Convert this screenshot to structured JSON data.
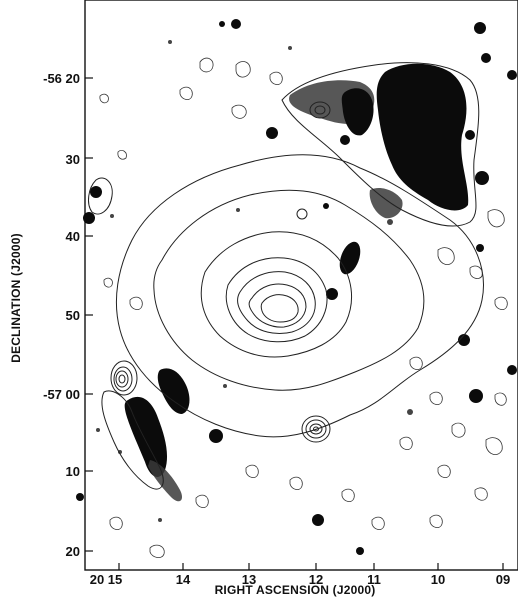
{
  "figure": {
    "ylabel": "DECLINATION (J2000)",
    "xlabel": "RIGHT ASCENSION (J2000)"
  },
  "axes": {
    "y_ticks": [
      "-56 20",
      "30",
      "40",
      "50",
      "-57 00",
      "10",
      "20"
    ],
    "x_ticks": [
      "20 15",
      "14",
      "13",
      "12",
      "11",
      "10",
      "09"
    ]
  },
  "colors": {
    "ink": "#111111",
    "background": "#ffffff"
  },
  "image_content": "radio contour map overlaid on optical image"
}
